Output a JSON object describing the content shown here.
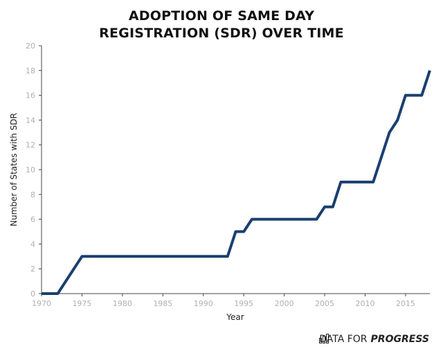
{
  "chart_data": {
    "type": "line",
    "title": "ADOPTION OF SAME DAY",
    "title_line2": "REGISTRATION (SDR) OVER TIME",
    "xlabel": "Year",
    "ylabel": "Number of States with SDR",
    "xlim": [
      1970,
      2018
    ],
    "ylim": [
      0,
      20
    ],
    "x_ticks": [
      1970,
      1975,
      1980,
      1985,
      1990,
      1995,
      2000,
      2005,
      2010,
      2015
    ],
    "y_ticks": [
      0,
      2,
      4,
      6,
      8,
      10,
      12,
      14,
      16,
      18,
      20
    ],
    "grid": false,
    "series": [
      {
        "color": "#1a3f6f",
        "x": [
          1970,
          1972,
          1975,
          1993,
          1994,
          1995,
          1996,
          2004,
          2005,
          2006,
          2007,
          2011,
          2013,
          2014,
          2015,
          2017,
          2018
        ],
        "y": [
          0,
          0,
          3,
          3,
          5,
          5,
          6,
          6,
          7,
          7,
          9,
          9,
          13,
          14,
          16,
          16,
          18
        ]
      }
    ]
  },
  "brand": {
    "text_plain": "DATA FOR",
    "text_bold": "PROGRESS",
    "icon": "bar-chart-icon"
  }
}
